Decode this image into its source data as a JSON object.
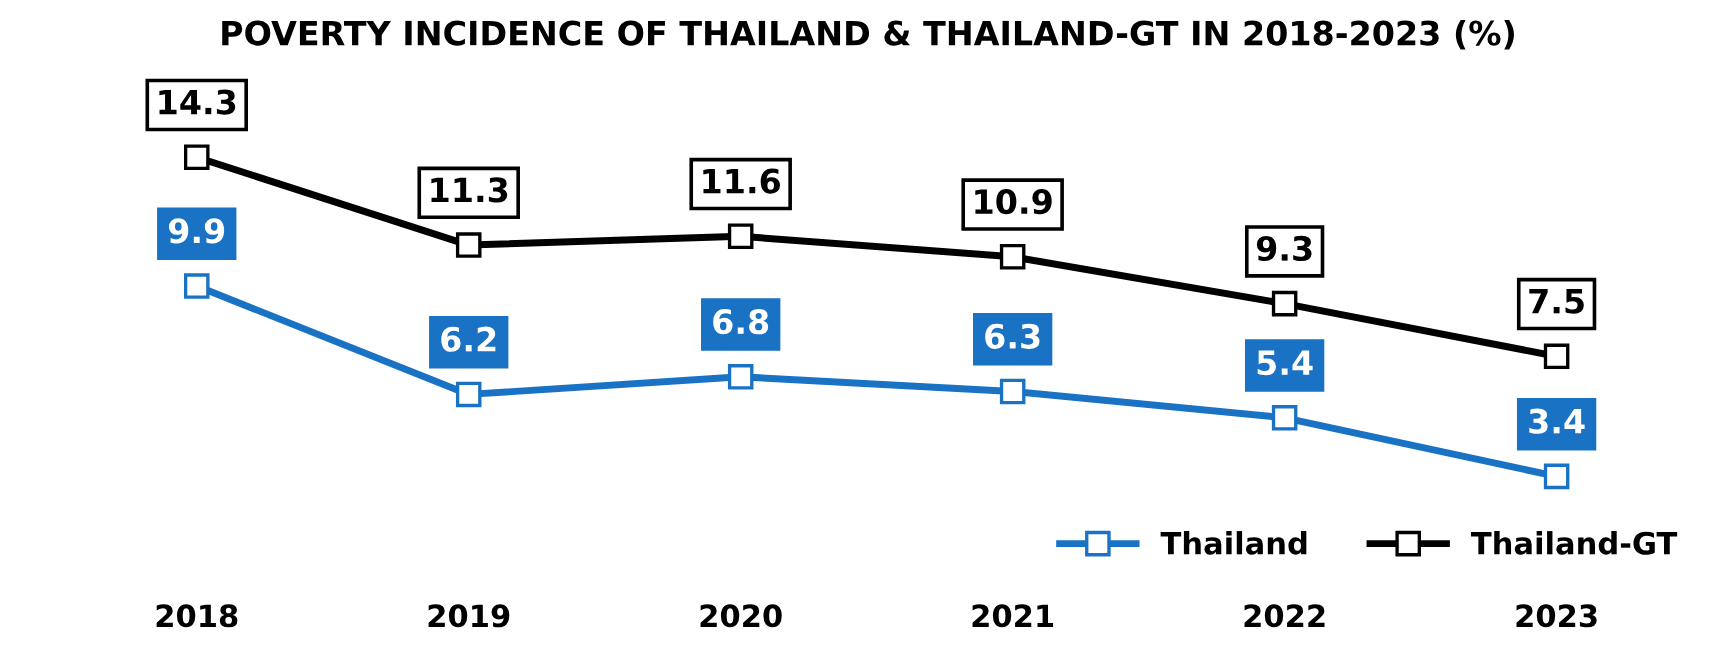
{
  "chart_data": {
    "type": "line",
    "title": "POVERTY INCIDENCE OF THAILAND & THAILAND-GT IN 2018-2023 (%)",
    "categories": [
      "2018",
      "2019",
      "2020",
      "2021",
      "2022",
      "2023"
    ],
    "series": [
      {
        "name": "Thailand",
        "color": "#1a72c4",
        "values": [
          9.9,
          6.2,
          6.8,
          6.3,
          5.4,
          3.4
        ]
      },
      {
        "name": "Thailand-GT",
        "color": "#000000",
        "values": [
          14.3,
          11.3,
          11.6,
          10.9,
          9.3,
          7.5
        ]
      }
    ],
    "data_labels": true,
    "legend": "bottom right",
    "marker": "square",
    "line_style": "solid",
    "grid": false
  }
}
